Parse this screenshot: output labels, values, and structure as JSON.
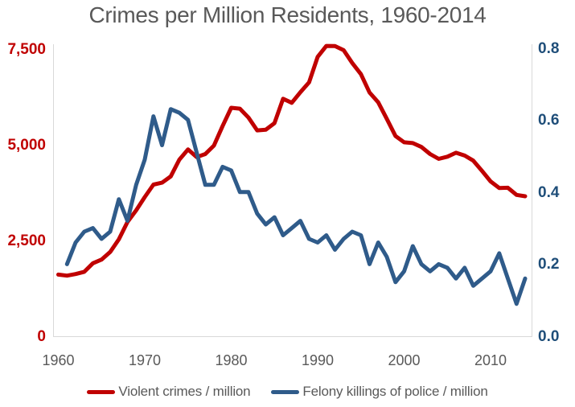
{
  "title": "Crimes per Million Residents, 1960-2014",
  "colors": {
    "violent_crimes_line": "#C00000",
    "felony_killings_line": "#2F5B8A",
    "left_axis_label": "#C00000",
    "right_axis_label": "#1F4E79",
    "text_gray": "#595959",
    "axis_line_gray": "#D9D9D9",
    "background": "#FFFFFF"
  },
  "chart_data": {
    "type": "line",
    "title": "Crimes per Million Residents, 1960-2014",
    "grid": false,
    "legend_position": "bottom",
    "x": [
      1960,
      1961,
      1962,
      1963,
      1964,
      1965,
      1966,
      1967,
      1968,
      1969,
      1970,
      1971,
      1972,
      1973,
      1974,
      1975,
      1976,
      1977,
      1978,
      1979,
      1980,
      1981,
      1982,
      1983,
      1984,
      1985,
      1986,
      1987,
      1988,
      1989,
      1990,
      1991,
      1992,
      1993,
      1994,
      1995,
      1996,
      1997,
      1998,
      1999,
      2000,
      2001,
      2002,
      2003,
      2004,
      2005,
      2006,
      2007,
      2008,
      2009,
      2010,
      2011,
      2012,
      2013,
      2014
    ],
    "series": [
      {
        "name": "Violent crimes / million",
        "axis": "left",
        "color": "#C00000",
        "values": [
          1609,
          1581,
          1623,
          1682,
          1906,
          2002,
          2200,
          2532,
          2984,
          3287,
          3635,
          3960,
          4010,
          4174,
          4611,
          4878,
          4678,
          4759,
          4978,
          5489,
          5966,
          5943,
          5711,
          5377,
          5392,
          5566,
          6201,
          6097,
          6372,
          6631,
          7296,
          7582,
          7577,
          7471,
          7136,
          6845,
          6366,
          6110,
          5676,
          5230,
          5065,
          5045,
          4944,
          4758,
          4632,
          4690,
          4793,
          4718,
          4586,
          4319,
          4045,
          3871,
          3878,
          3691,
          3655
        ]
      },
      {
        "name": "Felony killings of police / million",
        "axis": "right",
        "color": "#2F5B8A",
        "values": [
          null,
          0.2,
          0.26,
          0.29,
          0.3,
          0.27,
          0.29,
          0.38,
          0.32,
          0.42,
          0.49,
          0.61,
          0.53,
          0.63,
          0.62,
          0.6,
          0.51,
          0.42,
          0.42,
          0.47,
          0.46,
          0.4,
          0.4,
          0.34,
          0.31,
          0.33,
          0.28,
          0.3,
          0.32,
          0.27,
          0.26,
          0.28,
          0.24,
          0.27,
          0.29,
          0.28,
          0.2,
          0.26,
          0.22,
          0.15,
          0.18,
          0.25,
          0.2,
          0.18,
          0.2,
          0.19,
          0.16,
          0.19,
          0.14,
          0.16,
          0.18,
          0.23,
          0.16,
          0.09,
          0.16
        ]
      }
    ],
    "left_axis": {
      "range": [
        0,
        7500
      ],
      "color": "#C00000",
      "ticks": [
        {
          "value": 0,
          "label": "0"
        },
        {
          "value": 2500,
          "label": "2,500"
        },
        {
          "value": 5000,
          "label": "5,000"
        },
        {
          "value": 7500,
          "label": "7,500"
        }
      ]
    },
    "right_axis": {
      "range": [
        0,
        0.8
      ],
      "color": "#1F4E79",
      "ticks": [
        {
          "value": 0,
          "label": "0.0"
        },
        {
          "value": 0.2,
          "label": "0.2"
        },
        {
          "value": 0.4,
          "label": "0.4"
        },
        {
          "value": 0.6,
          "label": "0.6"
        },
        {
          "value": 0.8,
          "label": "0.8"
        }
      ]
    },
    "x_axis": {
      "range": [
        1960,
        2014
      ],
      "color": "#595959",
      "ticks": [
        {
          "value": 1960,
          "label": "1960"
        },
        {
          "value": 1970,
          "label": "1970"
        },
        {
          "value": 1980,
          "label": "1980"
        },
        {
          "value": 1990,
          "label": "1990"
        },
        {
          "value": 2000,
          "label": "2000"
        },
        {
          "value": 2010,
          "label": "2010"
        }
      ]
    }
  }
}
